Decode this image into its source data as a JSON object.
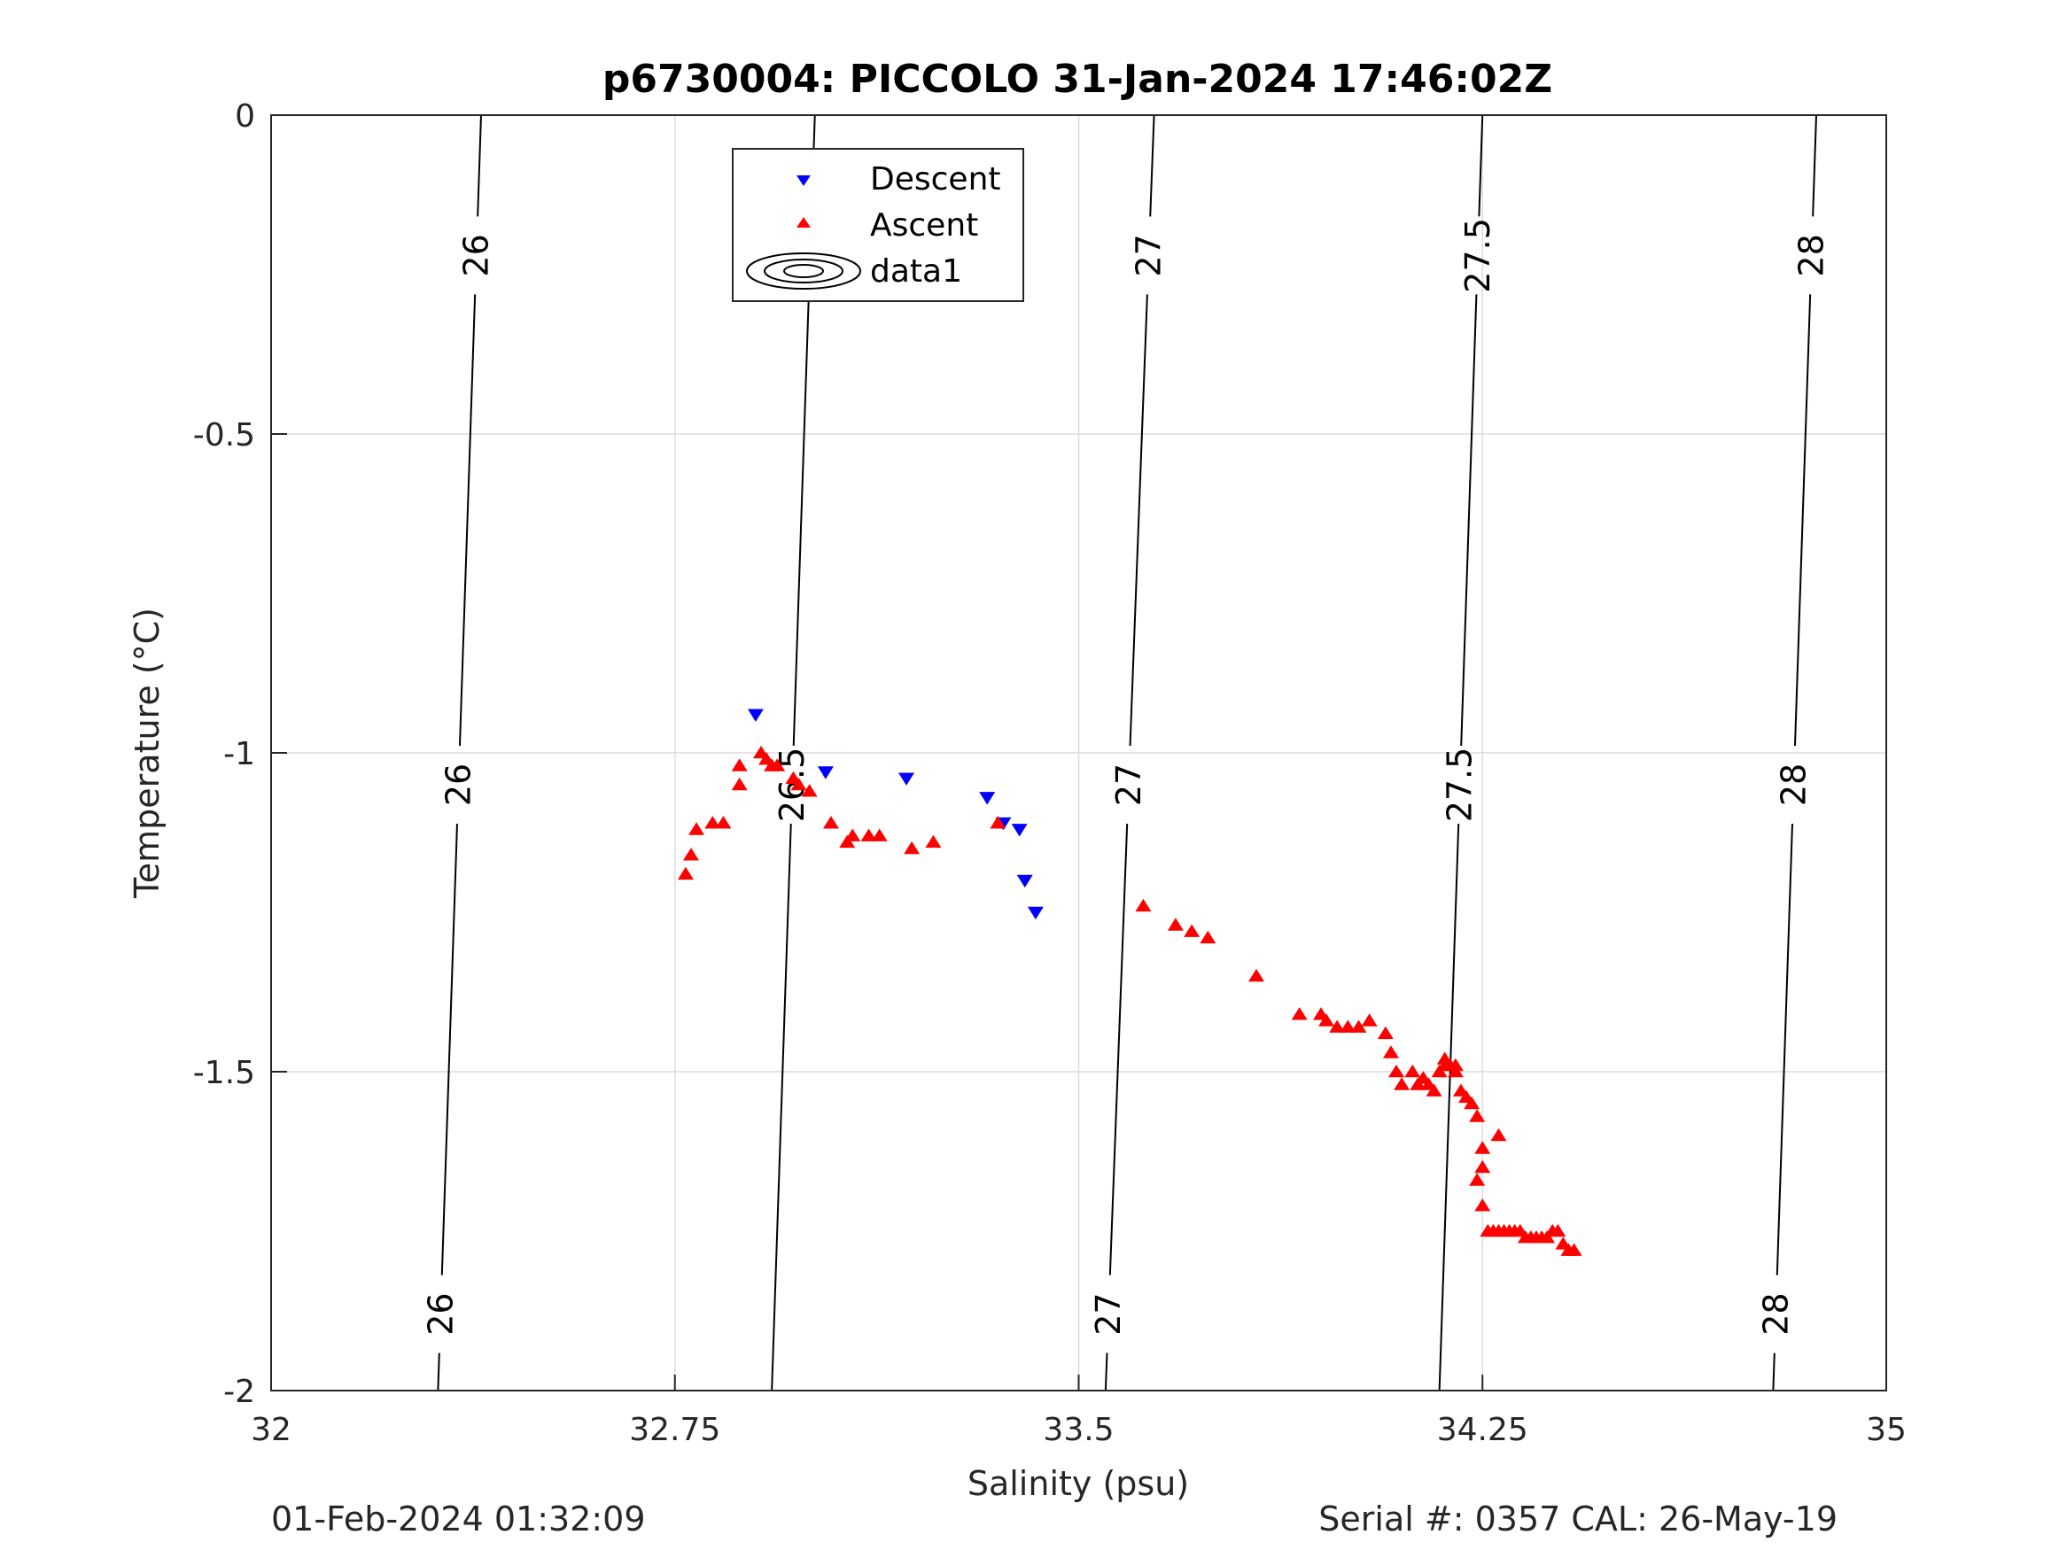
{
  "chart_data": {
    "type": "scatter",
    "title": "p6730004: PICCOLO 31-Jan-2024 17:46:02Z",
    "xlabel": "Salinity (psu)",
    "ylabel": "Temperature (°C)",
    "xlim": [
      32,
      35
    ],
    "ylim": [
      -2,
      0
    ],
    "xticks": [
      "32",
      "32.75",
      "33.5",
      "34.25",
      "35"
    ],
    "yticks": [
      "-2",
      "-1.5",
      "-1",
      "-0.5",
      "0"
    ],
    "grid": true,
    "legend": {
      "placement": "top-center",
      "entries": [
        "Descent",
        "Ascent",
        "data1"
      ]
    },
    "series": [
      {
        "name": "Descent",
        "marker": "triangle-down",
        "color": "#0000ff",
        "points": [
          [
            32.9,
            -0.94
          ],
          [
            33.03,
            -1.03
          ],
          [
            33.18,
            -1.04
          ],
          [
            33.33,
            -1.07
          ],
          [
            33.36,
            -1.11
          ],
          [
            33.39,
            -1.12
          ],
          [
            33.4,
            -1.2
          ],
          [
            33.42,
            -1.25
          ]
        ]
      },
      {
        "name": "Ascent",
        "marker": "triangle-up",
        "color": "#ff0000",
        "points": [
          [
            32.77,
            -1.19
          ],
          [
            32.78,
            -1.16
          ],
          [
            32.79,
            -1.12
          ],
          [
            32.82,
            -1.11
          ],
          [
            32.84,
            -1.11
          ],
          [
            32.87,
            -1.02
          ],
          [
            32.87,
            -1.05
          ],
          [
            32.91,
            -1.0
          ],
          [
            32.92,
            -1.01
          ],
          [
            32.93,
            -1.02
          ],
          [
            32.94,
            -1.02
          ],
          [
            32.97,
            -1.04
          ],
          [
            32.98,
            -1.05
          ],
          [
            33.0,
            -1.06
          ],
          [
            33.04,
            -1.11
          ],
          [
            33.07,
            -1.14
          ],
          [
            33.08,
            -1.13
          ],
          [
            33.11,
            -1.13
          ],
          [
            33.13,
            -1.13
          ],
          [
            33.19,
            -1.15
          ],
          [
            33.23,
            -1.14
          ],
          [
            33.35,
            -1.11
          ],
          [
            33.62,
            -1.24
          ],
          [
            33.68,
            -1.27
          ],
          [
            33.71,
            -1.28
          ],
          [
            33.74,
            -1.29
          ],
          [
            33.83,
            -1.35
          ],
          [
            33.91,
            -1.41
          ],
          [
            33.95,
            -1.41
          ],
          [
            33.96,
            -1.42
          ],
          [
            33.98,
            -1.43
          ],
          [
            34.0,
            -1.43
          ],
          [
            34.02,
            -1.43
          ],
          [
            34.04,
            -1.42
          ],
          [
            34.07,
            -1.44
          ],
          [
            34.08,
            -1.47
          ],
          [
            34.09,
            -1.5
          ],
          [
            34.1,
            -1.52
          ],
          [
            34.12,
            -1.5
          ],
          [
            34.13,
            -1.52
          ],
          [
            34.14,
            -1.51
          ],
          [
            34.15,
            -1.52
          ],
          [
            34.16,
            -1.53
          ],
          [
            34.17,
            -1.5
          ],
          [
            34.18,
            -1.49
          ],
          [
            34.18,
            -1.48
          ],
          [
            34.19,
            -1.49
          ],
          [
            34.2,
            -1.5
          ],
          [
            34.2,
            -1.49
          ],
          [
            34.21,
            -1.53
          ],
          [
            34.22,
            -1.54
          ],
          [
            34.23,
            -1.55
          ],
          [
            34.24,
            -1.57
          ],
          [
            34.24,
            -1.67
          ],
          [
            34.25,
            -1.65
          ],
          [
            34.25,
            -1.62
          ],
          [
            34.25,
            -1.71
          ],
          [
            34.26,
            -1.75
          ],
          [
            34.27,
            -1.75
          ],
          [
            34.28,
            -1.75
          ],
          [
            34.29,
            -1.75
          ],
          [
            34.3,
            -1.75
          ],
          [
            34.28,
            -1.6
          ],
          [
            34.31,
            -1.75
          ],
          [
            34.32,
            -1.75
          ],
          [
            34.33,
            -1.76
          ],
          [
            34.34,
            -1.76
          ],
          [
            34.35,
            -1.76
          ],
          [
            34.36,
            -1.76
          ],
          [
            34.37,
            -1.76
          ],
          [
            34.38,
            -1.75
          ],
          [
            34.39,
            -1.75
          ],
          [
            34.4,
            -1.77
          ],
          [
            34.41,
            -1.78
          ],
          [
            34.42,
            -1.78
          ]
        ]
      }
    ],
    "contours": {
      "name": "data1",
      "color": "#000000",
      "lines": [
        {
          "level": "26",
          "s_at_top": 32.39,
          "s_at_bottom": 32.31,
          "labels_t": [
            -0.22,
            -1.05,
            -1.88
          ]
        },
        {
          "level": "26.5",
          "s_at_top": 33.01,
          "s_at_bottom": 32.93,
          "labels_t": [
            -0.22,
            -1.05
          ]
        },
        {
          "level": "27",
          "s_at_top": 33.64,
          "s_at_bottom": 33.55,
          "labels_t": [
            -0.22,
            -1.05,
            -1.88
          ]
        },
        {
          "level": "27.5",
          "s_at_top": 34.25,
          "s_at_bottom": 34.17,
          "labels_t": [
            -0.22,
            -1.05
          ]
        },
        {
          "level": "28",
          "s_at_top": 34.87,
          "s_at_bottom": 34.79,
          "labels_t": [
            -0.22,
            -1.05,
            -1.88
          ]
        }
      ]
    }
  },
  "footer": {
    "left": "01-Feb-2024 01:32:09",
    "right": "Serial #: 0357  CAL: 26-May-19"
  }
}
